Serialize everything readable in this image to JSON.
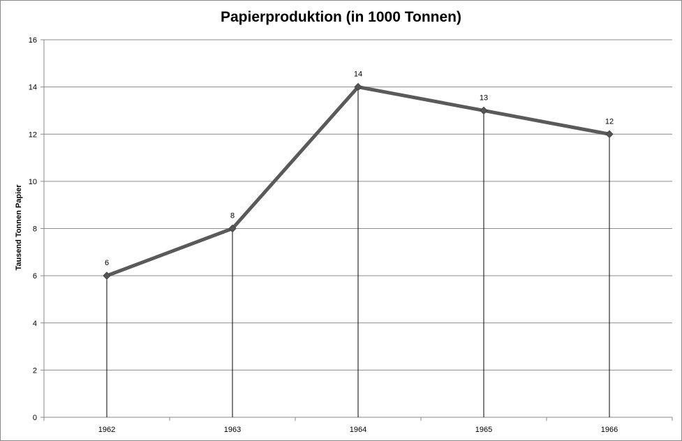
{
  "chart_data": {
    "type": "line",
    "title": "Papierproduktion (in 1000 Tonnen)",
    "xlabel": "",
    "ylabel": "Tausend Tonnen Papier",
    "categories": [
      "1962",
      "1963",
      "1964",
      "1965",
      "1966"
    ],
    "series": [
      {
        "values": [
          6,
          8,
          14,
          13,
          12
        ],
        "color": "#5a5a5a"
      }
    ],
    "data_labels": [
      "6",
      "8",
      "14",
      "13",
      "12"
    ],
    "ylim": [
      0,
      16
    ],
    "yticks": [
      0,
      2,
      4,
      6,
      8,
      10,
      12,
      14,
      16
    ],
    "grid": true,
    "drop_lines": true,
    "legend": "none",
    "colors": {
      "grid": "#8c8c8c",
      "axis": "#888888",
      "drop_line": "#000000",
      "line": "#5a5a5a"
    }
  }
}
